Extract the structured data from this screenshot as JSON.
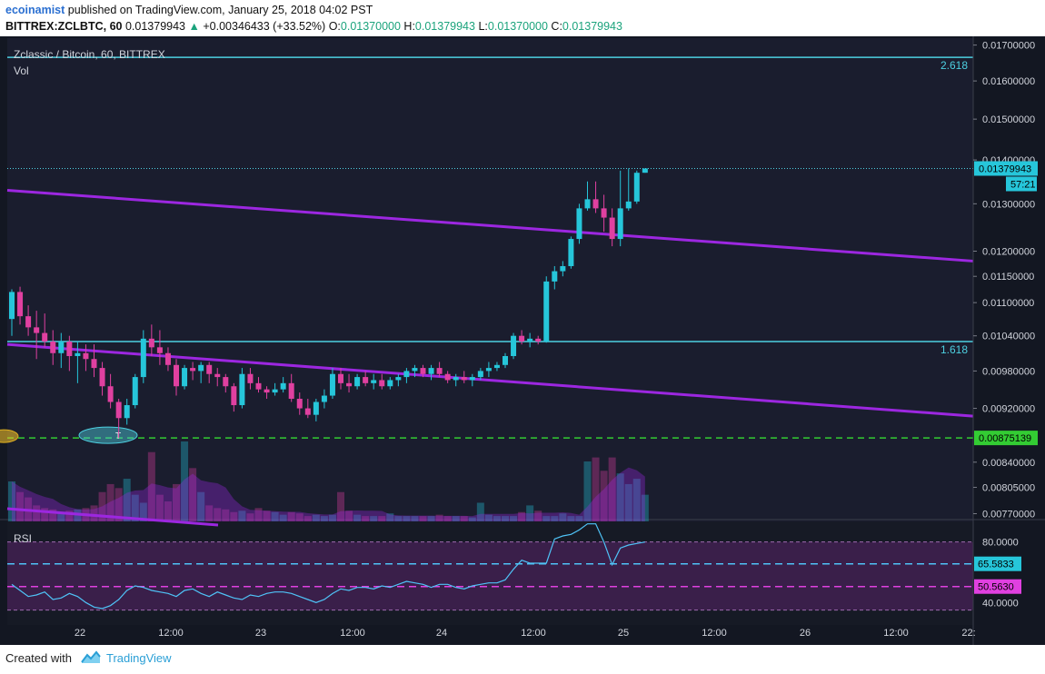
{
  "header": {
    "author": "ecoinamist",
    "published_text": "published on TradingView.com, January 25, 2018 04:02 PST",
    "symbol_line": "BITTREX:ZCLBTC, 60",
    "last_price": "0.01379943",
    "change_arrow": "▲",
    "change": "+0.00346433 (+33.52%)",
    "o_label": "O:",
    "o_value": "0.01370000",
    "h_label": "H:",
    "h_value": "0.01379943",
    "l_label": "L:",
    "l_value": "0.01370000",
    "c_label": "C:",
    "c_value": "0.01379943"
  },
  "chart_title": "Zclassic / Bitcoin, 60, BITTREX",
  "volume_label": "Vol",
  "rsi_label": "RSI",
  "footer": {
    "created_with": "Created with",
    "brand": "TradingView"
  },
  "colors": {
    "background": "#131722",
    "bull": "#26c6da",
    "bear": "#e040a0",
    "fib_line": "#4dd0e1",
    "channel": "#9c27e0",
    "support": "#33cc33",
    "rsi_line": "#4fc3f7",
    "rsi_band": "#3a1f4a"
  },
  "chart_data": [
    {
      "type": "candlestick",
      "title": "Zclassic / Bitcoin, 60, BITTREX",
      "x_tick_labels": [
        "22",
        "12:00",
        "23",
        "12:00",
        "24",
        "12:00",
        "25",
        "12:00",
        "26",
        "12:00",
        "22:"
      ],
      "y_tick_labels": [
        "0.01700000",
        "0.01600000",
        "0.01500000",
        "0.01400000",
        "0.01300000",
        "0.01200000",
        "0.01150000",
        "0.01100000",
        "0.01040000",
        "0.00980000",
        "0.00920000",
        "0.00840000",
        "0.00805000",
        "0.00770000"
      ],
      "y_scale": "log",
      "ylim": [
        0.0076,
        0.0172
      ],
      "price_labels": [
        {
          "value": 0.01379943,
          "text": "0.01379943"
        },
        {
          "text": "57:21"
        },
        {
          "value": 0.00875139,
          "text": "0.00875139"
        }
      ],
      "horizontal_lines": [
        {
          "label": "2.618",
          "value": 0.01665
        },
        {
          "label": "1.618",
          "value": 0.0103
        },
        {
          "label": "",
          "value": 0.00875139,
          "style": "dashed"
        },
        {
          "label": "",
          "value": 0.01379943,
          "style": "dotted"
        }
      ],
      "trend_lines": [
        {
          "from": [
            0,
            0.0133
          ],
          "to": [
            266,
            0.0118
          ]
        },
        {
          "from": [
            0,
            0.01025
          ],
          "to": [
            266,
            0.00908
          ]
        }
      ],
      "candles": [
        [
          0.0107,
          0.01125,
          0.0104,
          0.0112
        ],
        [
          0.0112,
          0.0113,
          0.0106,
          0.01075
        ],
        [
          0.01075,
          0.01095,
          0.0104,
          0.01055
        ],
        [
          0.01055,
          0.01085,
          0.01,
          0.01045
        ],
        [
          0.01045,
          0.0108,
          0.0102,
          0.0103
        ],
        [
          0.0103,
          0.0105,
          0.0099,
          0.0101
        ],
        [
          0.0101,
          0.01045,
          0.00985,
          0.0103
        ],
        [
          0.0103,
          0.0104,
          0.0098,
          0.01005
        ],
        [
          0.01005,
          0.0103,
          0.0096,
          0.0101
        ],
        [
          0.0101,
          0.01025,
          0.0098,
          0.01
        ],
        [
          0.01,
          0.01025,
          0.0097,
          0.00985
        ],
        [
          0.00985,
          0.00995,
          0.0094,
          0.00955
        ],
        [
          0.00955,
          0.00975,
          0.0092,
          0.0093
        ],
        [
          0.0093,
          0.00935,
          0.00875,
          0.00905
        ],
        [
          0.00905,
          0.00935,
          0.00895,
          0.00925
        ],
        [
          0.00925,
          0.00975,
          0.0092,
          0.0097
        ],
        [
          0.0097,
          0.0105,
          0.0096,
          0.01035
        ],
        [
          0.01035,
          0.0106,
          0.01005,
          0.0102
        ],
        [
          0.0102,
          0.0105,
          0.0099,
          0.0101
        ],
        [
          0.0101,
          0.0102,
          0.0098,
          0.0099
        ],
        [
          0.0099,
          0.01,
          0.0094,
          0.00955
        ],
        [
          0.00955,
          0.0099,
          0.0095,
          0.00985
        ],
        [
          0.00985,
          0.00995,
          0.00965,
          0.0098
        ],
        [
          0.0098,
          0.00995,
          0.0096,
          0.0099
        ],
        [
          0.0099,
          0.00995,
          0.0096,
          0.00975
        ],
        [
          0.00975,
          0.00985,
          0.00955,
          0.0097
        ],
        [
          0.0097,
          0.00975,
          0.00945,
          0.00955
        ],
        [
          0.00955,
          0.0096,
          0.00915,
          0.00925
        ],
        [
          0.00925,
          0.00985,
          0.0092,
          0.00975
        ],
        [
          0.00975,
          0.00985,
          0.0095,
          0.0096
        ],
        [
          0.0096,
          0.0097,
          0.00945,
          0.0095
        ],
        [
          0.0095,
          0.00955,
          0.00935,
          0.00945
        ],
        [
          0.00945,
          0.0096,
          0.0094,
          0.0095
        ],
        [
          0.0095,
          0.0097,
          0.00945,
          0.0096
        ],
        [
          0.0096,
          0.00975,
          0.0093,
          0.00935
        ],
        [
          0.00935,
          0.00945,
          0.0091,
          0.0092
        ],
        [
          0.0092,
          0.00935,
          0.00905,
          0.0091
        ],
        [
          0.0091,
          0.00935,
          0.009,
          0.0093
        ],
        [
          0.0093,
          0.0095,
          0.0092,
          0.0094
        ],
        [
          0.0094,
          0.00985,
          0.00935,
          0.00975
        ],
        [
          0.00975,
          0.00985,
          0.0095,
          0.0096
        ],
        [
          0.0096,
          0.00975,
          0.00945,
          0.00955
        ],
        [
          0.00955,
          0.00975,
          0.0095,
          0.0097
        ],
        [
          0.0097,
          0.0098,
          0.00955,
          0.0096
        ],
        [
          0.0096,
          0.00975,
          0.0095,
          0.00965
        ],
        [
          0.00965,
          0.00975,
          0.0095,
          0.00955
        ],
        [
          0.00955,
          0.0097,
          0.0095,
          0.00965
        ],
        [
          0.00965,
          0.00975,
          0.00955,
          0.0097
        ],
        [
          0.0097,
          0.00985,
          0.0096,
          0.0098
        ],
        [
          0.0098,
          0.0099,
          0.0097,
          0.00985
        ],
        [
          0.00985,
          0.0099,
          0.0097,
          0.00975
        ],
        [
          0.00975,
          0.0099,
          0.00965,
          0.00985
        ],
        [
          0.00985,
          0.00995,
          0.0097,
          0.00975
        ],
        [
          0.00975,
          0.0098,
          0.0096,
          0.00965
        ],
        [
          0.00965,
          0.00975,
          0.00955,
          0.0097
        ],
        [
          0.0097,
          0.0098,
          0.0096,
          0.00965
        ],
        [
          0.00965,
          0.00975,
          0.00955,
          0.0097
        ],
        [
          0.0097,
          0.00985,
          0.00965,
          0.0098
        ],
        [
          0.0098,
          0.00995,
          0.0097,
          0.00985
        ],
        [
          0.00985,
          0.00995,
          0.0098,
          0.0099
        ],
        [
          0.0099,
          0.0101,
          0.00985,
          0.01005
        ],
        [
          0.01005,
          0.01045,
          0.01,
          0.0104
        ],
        [
          0.0104,
          0.0105,
          0.01025,
          0.0103
        ],
        [
          0.0103,
          0.01045,
          0.0102,
          0.01035
        ],
        [
          0.01035,
          0.0104,
          0.01025,
          0.0103
        ],
        [
          0.0103,
          0.0115,
          0.01028,
          0.0114
        ],
        [
          0.0114,
          0.0117,
          0.01125,
          0.0116
        ],
        [
          0.0116,
          0.0118,
          0.0115,
          0.0117
        ],
        [
          0.0117,
          0.0123,
          0.01165,
          0.01225
        ],
        [
          0.01225,
          0.013,
          0.01215,
          0.0129
        ],
        [
          0.0129,
          0.0135,
          0.01285,
          0.0131
        ],
        [
          0.0131,
          0.0135,
          0.0128,
          0.0129
        ],
        [
          0.0129,
          0.0132,
          0.0124,
          0.0127
        ],
        [
          0.0127,
          0.0129,
          0.0121,
          0.01225
        ],
        [
          0.01225,
          0.01375,
          0.0121,
          0.0129
        ],
        [
          0.0129,
          0.0138,
          0.01285,
          0.01305
        ],
        [
          0.01305,
          0.01375,
          0.013,
          0.0137
        ],
        [
          0.0137,
          0.0138,
          0.0137,
          0.0138
        ]
      ],
      "annotations": [
        {
          "text": "T"
        }
      ]
    },
    {
      "type": "bar",
      "title": "Vol",
      "values": [
        30,
        22,
        18,
        12,
        10,
        9,
        7,
        8,
        9,
        10,
        12,
        22,
        28,
        25,
        32,
        20,
        14,
        52,
        20,
        15,
        28,
        60,
        40,
        22,
        12,
        10,
        9,
        7,
        8,
        6,
        10,
        8,
        7,
        5,
        7,
        6,
        4,
        5,
        4,
        5,
        22,
        8,
        5,
        4,
        4,
        4,
        6,
        4,
        4,
        4,
        4,
        4,
        5,
        4,
        4,
        4,
        3,
        14,
        5,
        4,
        4,
        4,
        7,
        12,
        8,
        4,
        4,
        6,
        4,
        4,
        45,
        48,
        38,
        48,
        36,
        28,
        32,
        20
      ]
    },
    {
      "type": "line",
      "title": "RSI",
      "reference_lines": [
        {
          "text": "80.0000",
          "value": 80
        },
        {
          "text": "40.0000",
          "value": 40
        }
      ],
      "value_labels": [
        {
          "text": "65.5833",
          "value": 65.5833
        },
        {
          "text": "50.5630",
          "value": 50.563
        }
      ],
      "ylim": [
        30,
        90
      ],
      "values": [
        52,
        48,
        44,
        45,
        47,
        42,
        43,
        46,
        44,
        40,
        37,
        36,
        38,
        42,
        48,
        51,
        50,
        48,
        47,
        46,
        44,
        48,
        49,
        46,
        44,
        47,
        45,
        43,
        42,
        45,
        44,
        46,
        47,
        47,
        46,
        44,
        42,
        40,
        42,
        46,
        49,
        48,
        50,
        50,
        49,
        51,
        50,
        52,
        54,
        53,
        52,
        50,
        52,
        52,
        50,
        49,
        51,
        52,
        53,
        53,
        55,
        62,
        68,
        66,
        66,
        66,
        82,
        84,
        85,
        88,
        92,
        92,
        80,
        65,
        76,
        78,
        79,
        80
      ]
    }
  ]
}
